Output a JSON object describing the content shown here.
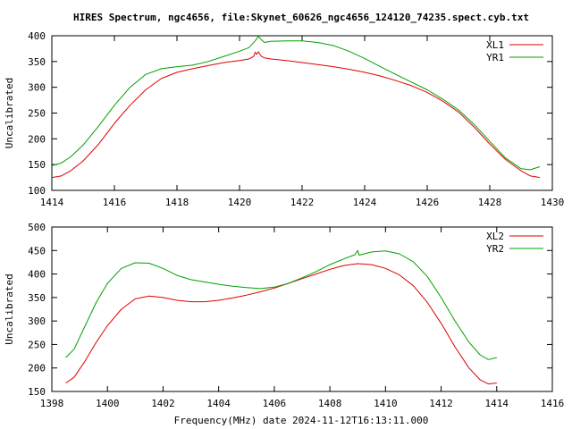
{
  "title": "HIRES Spectrum, ngc4656, file:Skynet_60626_ngc4656_124120_74235.spect.cyb.txt",
  "footer_xlabel": "Frequency(MHz) date 2024-11-12T16:13:11.000",
  "colors": {
    "red": "#e00000",
    "green": "#00a000",
    "axis": "#000000"
  },
  "chart_data": [
    {
      "type": "line",
      "title": "",
      "xlabel": "",
      "ylabel": "Uncalibrated",
      "xlim": [
        1414,
        1430
      ],
      "ylim": [
        100,
        400
      ],
      "xticks": [
        "1414",
        "1416",
        "1418",
        "1420",
        "1422",
        "1424",
        "1426",
        "1428",
        "1430"
      ],
      "yticks": [
        "100",
        "150",
        "200",
        "250",
        "300",
        "350",
        "400"
      ],
      "grid": false,
      "legend_position": "top-right",
      "series": [
        {
          "name": "XL1",
          "color": "#e00000",
          "points": [
            [
              1414.0,
              125
            ],
            [
              1414.3,
              128
            ],
            [
              1414.6,
              138
            ],
            [
              1415.0,
              157
            ],
            [
              1415.5,
              190
            ],
            [
              1416.0,
              230
            ],
            [
              1416.5,
              265
            ],
            [
              1417.0,
              295
            ],
            [
              1417.5,
              317
            ],
            [
              1418.0,
              329
            ],
            [
              1418.5,
              336
            ],
            [
              1419.0,
              342
            ],
            [
              1419.5,
              348
            ],
            [
              1420.0,
              352
            ],
            [
              1420.3,
              355
            ],
            [
              1420.45,
              360
            ],
            [
              1420.5,
              368
            ],
            [
              1420.55,
              364
            ],
            [
              1420.6,
              369
            ],
            [
              1420.7,
              360
            ],
            [
              1420.8,
              357
            ],
            [
              1421.0,
              355
            ],
            [
              1421.5,
              352
            ],
            [
              1422.0,
              348
            ],
            [
              1422.5,
              344
            ],
            [
              1423.0,
              340
            ],
            [
              1423.5,
              335
            ],
            [
              1424.0,
              329
            ],
            [
              1424.5,
              322
            ],
            [
              1425.0,
              313
            ],
            [
              1425.5,
              303
            ],
            [
              1426.0,
              290
            ],
            [
              1426.5,
              273
            ],
            [
              1427.0,
              252
            ],
            [
              1427.5,
              223
            ],
            [
              1428.0,
              190
            ],
            [
              1428.5,
              160
            ],
            [
              1429.0,
              138
            ],
            [
              1429.3,
              128
            ],
            [
              1429.5,
              126
            ],
            [
              1429.6,
              125
            ]
          ]
        },
        {
          "name": "YR1",
          "color": "#00a000",
          "points": [
            [
              1414.0,
              148
            ],
            [
              1414.3,
              153
            ],
            [
              1414.6,
              165
            ],
            [
              1415.0,
              188
            ],
            [
              1415.5,
              225
            ],
            [
              1416.0,
              265
            ],
            [
              1416.5,
              300
            ],
            [
              1417.0,
              325
            ],
            [
              1417.5,
              336
            ],
            [
              1418.0,
              340
            ],
            [
              1418.5,
              343
            ],
            [
              1419.0,
              350
            ],
            [
              1419.5,
              360
            ],
            [
              1420.0,
              370
            ],
            [
              1420.3,
              377
            ],
            [
              1420.5,
              390
            ],
            [
              1420.6,
              399
            ],
            [
              1420.7,
              392
            ],
            [
              1420.8,
              387
            ],
            [
              1421.0,
              389
            ],
            [
              1421.5,
              390
            ],
            [
              1422.0,
              390
            ],
            [
              1422.5,
              387
            ],
            [
              1423.0,
              381
            ],
            [
              1423.5,
              370
            ],
            [
              1424.0,
              356
            ],
            [
              1424.5,
              340
            ],
            [
              1425.0,
              325
            ],
            [
              1425.5,
              310
            ],
            [
              1426.0,
              295
            ],
            [
              1426.5,
              277
            ],
            [
              1427.0,
              256
            ],
            [
              1427.5,
              228
            ],
            [
              1428.0,
              195
            ],
            [
              1428.5,
              163
            ],
            [
              1429.0,
              142
            ],
            [
              1429.3,
              140
            ],
            [
              1429.6,
              146
            ]
          ]
        }
      ]
    },
    {
      "type": "line",
      "title": "",
      "xlabel": "",
      "ylabel": "Uncalibrated",
      "xlim": [
        1398,
        1416
      ],
      "ylim": [
        150,
        500
      ],
      "xticks": [
        "1398",
        "1400",
        "1402",
        "1404",
        "1406",
        "1408",
        "1410",
        "1412",
        "1414",
        "1416"
      ],
      "yticks": [
        "150",
        "200",
        "250",
        "300",
        "350",
        "400",
        "450",
        "500"
      ],
      "grid": false,
      "legend_position": "top-right",
      "series": [
        {
          "name": "XL2",
          "color": "#e00000",
          "points": [
            [
              1398.5,
              168
            ],
            [
              1398.8,
              180
            ],
            [
              1399.2,
              215
            ],
            [
              1399.6,
              255
            ],
            [
              1400.0,
              290
            ],
            [
              1400.5,
              325
            ],
            [
              1401.0,
              347
            ],
            [
              1401.5,
              353
            ],
            [
              1402.0,
              350
            ],
            [
              1402.5,
              344
            ],
            [
              1403.0,
              341
            ],
            [
              1403.5,
              341
            ],
            [
              1404.0,
              344
            ],
            [
              1404.5,
              349
            ],
            [
              1405.0,
              355
            ],
            [
              1405.5,
              362
            ],
            [
              1406.0,
              370
            ],
            [
              1406.5,
              380
            ],
            [
              1407.0,
              390
            ],
            [
              1407.5,
              400
            ],
            [
              1408.0,
              410
            ],
            [
              1408.5,
              418
            ],
            [
              1409.0,
              422
            ],
            [
              1409.5,
              420
            ],
            [
              1410.0,
              412
            ],
            [
              1410.5,
              398
            ],
            [
              1411.0,
              375
            ],
            [
              1411.5,
              340
            ],
            [
              1412.0,
              295
            ],
            [
              1412.5,
              245
            ],
            [
              1413.0,
              200
            ],
            [
              1413.4,
              175
            ],
            [
              1413.7,
              166
            ],
            [
              1414.0,
              168
            ]
          ]
        },
        {
          "name": "YR2",
          "color": "#00a000",
          "points": [
            [
              1398.5,
              222
            ],
            [
              1398.8,
              240
            ],
            [
              1399.2,
              290
            ],
            [
              1399.6,
              340
            ],
            [
              1400.0,
              380
            ],
            [
              1400.5,
              412
            ],
            [
              1401.0,
              424
            ],
            [
              1401.5,
              423
            ],
            [
              1402.0,
              412
            ],
            [
              1402.5,
              397
            ],
            [
              1403.0,
              388
            ],
            [
              1403.5,
              383
            ],
            [
              1404.0,
              378
            ],
            [
              1404.5,
              374
            ],
            [
              1405.0,
              371
            ],
            [
              1405.5,
              369
            ],
            [
              1406.0,
              372
            ],
            [
              1406.5,
              380
            ],
            [
              1407.0,
              392
            ],
            [
              1407.5,
              405
            ],
            [
              1408.0,
              420
            ],
            [
              1408.5,
              432
            ],
            [
              1408.9,
              441
            ],
            [
              1409.0,
              450
            ],
            [
              1409.05,
              440
            ],
            [
              1409.5,
              447
            ],
            [
              1410.0,
              449
            ],
            [
              1410.5,
              443
            ],
            [
              1411.0,
              426
            ],
            [
              1411.5,
              395
            ],
            [
              1412.0,
              350
            ],
            [
              1412.5,
              300
            ],
            [
              1413.0,
              255
            ],
            [
              1413.4,
              228
            ],
            [
              1413.7,
              218
            ],
            [
              1414.0,
              222
            ]
          ]
        }
      ]
    }
  ]
}
